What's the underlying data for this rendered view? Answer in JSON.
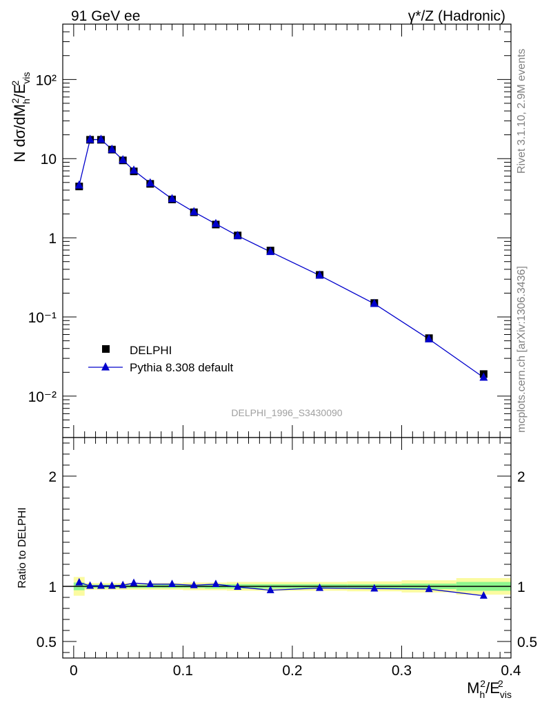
{
  "header": {
    "left": "91 GeV ee",
    "right": "γ*/Z (Hadronic)"
  },
  "side_labels": {
    "rivet": "Rivet 3.1.10,  2.9M events",
    "mcplots": "mcplots.cern.ch [arXiv:1306.3436]"
  },
  "watermark": "DELPHI_1996_S3430090",
  "chart_data": [
    {
      "type": "scatter",
      "panel": "main",
      "ylabel": "N dσ/dM_h²/E_vis²",
      "yscale": "log",
      "xlim": [
        -0.01,
        0.4
      ],
      "ylim": [
        0.003,
        500
      ],
      "ytick_labels": [
        "10⁻²",
        "10⁻¹",
        "1",
        "10",
        "10²"
      ],
      "legend_position": "lower-left",
      "x": [
        0.005,
        0.015,
        0.025,
        0.035,
        0.045,
        0.055,
        0.07,
        0.09,
        0.11,
        0.13,
        0.15,
        0.18,
        0.225,
        0.275,
        0.325,
        0.375
      ],
      "series": [
        {
          "name": "DELPHI",
          "marker": "square",
          "color": "#000000",
          "values": [
            4.45,
            17.3,
            17.3,
            13.0,
            9.5,
            6.9,
            4.8,
            3.05,
            2.1,
            1.47,
            1.07,
            0.69,
            0.34,
            0.15,
            0.054,
            0.019
          ]
        },
        {
          "name": "Pythia 8.308 default",
          "marker": "triangle",
          "color": "#0000cc",
          "values": [
            4.6,
            17.4,
            17.4,
            13.05,
            9.6,
            7.1,
            4.9,
            3.1,
            2.12,
            1.5,
            1.06,
            0.665,
            0.335,
            0.147,
            0.0525,
            0.0172
          ]
        }
      ]
    },
    {
      "type": "line",
      "panel": "ratio",
      "ylabel": "Ratio to DELPHI",
      "xlabel": "M_h²/E_vis²",
      "xlim": [
        -0.01,
        0.4
      ],
      "ylim": [
        0.35,
        2.35
      ],
      "ytick_labels": [
        "0.5",
        "1",
        "2"
      ],
      "xtick_labels": [
        "0",
        "0.1",
        "0.2",
        "0.3",
        "0.4"
      ],
      "x": [
        0.005,
        0.015,
        0.025,
        0.035,
        0.045,
        0.055,
        0.07,
        0.09,
        0.11,
        0.13,
        0.15,
        0.18,
        0.225,
        0.275,
        0.325,
        0.375
      ],
      "series": [
        {
          "name": "Pythia 8.308 default",
          "color": "#0000cc",
          "values": [
            1.035,
            1.005,
            1.005,
            1.005,
            1.01,
            1.03,
            1.02,
            1.02,
            1.01,
            1.02,
            0.995,
            0.965,
            0.985,
            0.98,
            0.975,
            0.915
          ]
        }
      ],
      "bands": {
        "bins": [
          [
            0.0,
            0.01
          ],
          [
            0.01,
            0.02
          ],
          [
            0.02,
            0.03
          ],
          [
            0.03,
            0.04
          ],
          [
            0.04,
            0.05
          ],
          [
            0.05,
            0.06
          ],
          [
            0.06,
            0.08
          ],
          [
            0.08,
            0.1
          ],
          [
            0.1,
            0.12
          ],
          [
            0.12,
            0.14
          ],
          [
            0.14,
            0.16
          ],
          [
            0.16,
            0.2
          ],
          [
            0.2,
            0.25
          ],
          [
            0.25,
            0.3
          ],
          [
            0.3,
            0.35
          ],
          [
            0.35,
            0.4
          ]
        ],
        "stat_halfwidth": [
          0.035,
          0.015,
          0.015,
          0.015,
          0.015,
          0.015,
          0.015,
          0.015,
          0.015,
          0.02,
          0.02,
          0.02,
          0.02,
          0.02,
          0.025,
          0.04
        ],
        "total_halfwidth": [
          0.085,
          0.03,
          0.03,
          0.03,
          0.03,
          0.03,
          0.03,
          0.03,
          0.035,
          0.035,
          0.04,
          0.04,
          0.04,
          0.045,
          0.055,
          0.075
        ],
        "inner_color": "#8ef58e",
        "outer_color": "#fbfba0"
      }
    }
  ]
}
